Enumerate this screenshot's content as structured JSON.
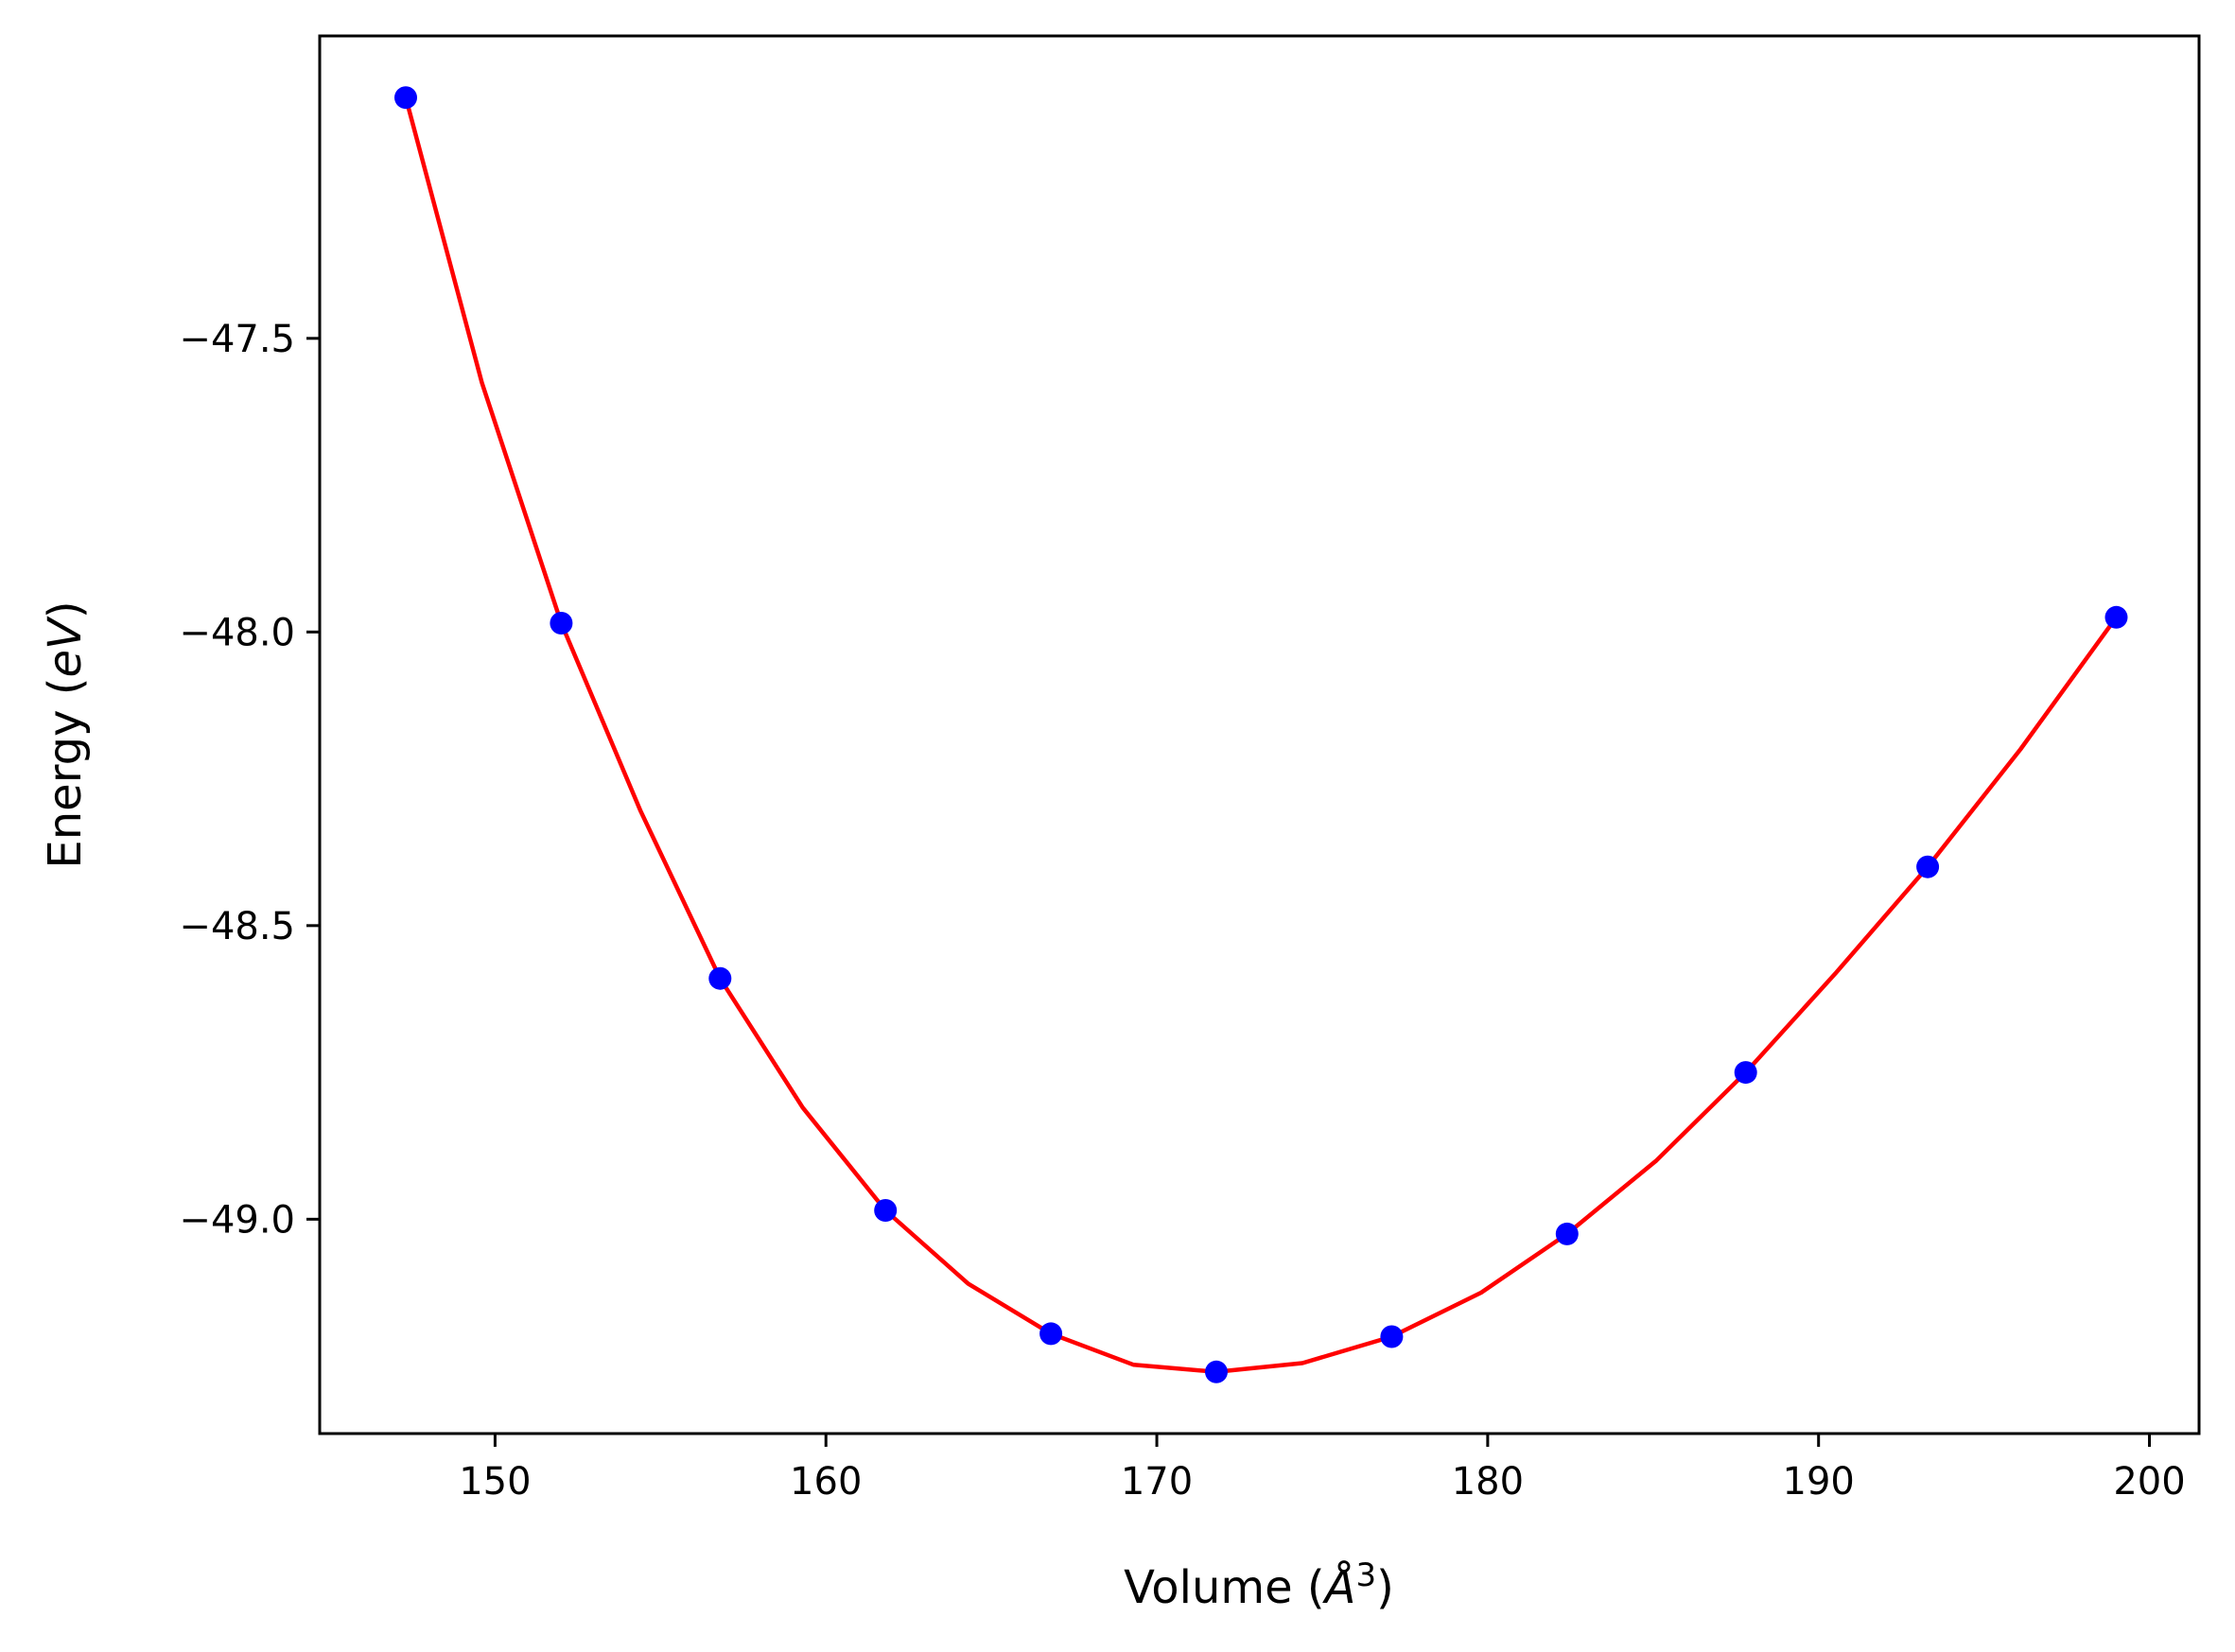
{
  "chart_data": {
    "type": "scatter",
    "xlabel_parts": {
      "prefix": "Volume (",
      "unit": "Å",
      "power": "3",
      "suffix": ")"
    },
    "ylabel_parts": {
      "prefix": "Energy (",
      "unit": "eV",
      "suffix": ")"
    },
    "xlim": [
      144.7,
      201.5
    ],
    "ylim": [
      -49.365,
      -46.985
    ],
    "xticks": [
      150,
      160,
      170,
      180,
      190,
      200
    ],
    "xtick_labels": [
      "150",
      "160",
      "170",
      "180",
      "190",
      "200"
    ],
    "yticks": [
      -47.5,
      -48.0,
      -48.5,
      -49.0
    ],
    "ytick_labels": [
      "−47.5",
      "−48.0",
      "−48.5",
      "−49.0"
    ],
    "grid": false,
    "series": [
      {
        "kind": "points",
        "color": "#0000ff",
        "x": [
          147.3,
          152.0,
          156.8,
          161.8,
          166.8,
          171.8,
          177.1,
          182.4,
          187.8,
          193.3,
          199.0
        ],
        "y": [
          -47.09,
          -47.985,
          -48.59,
          -48.985,
          -49.195,
          -49.26,
          -49.2,
          -49.025,
          -48.75,
          -48.4,
          -47.975
        ]
      },
      {
        "kind": "fit",
        "color": "#ff0000",
        "x": [
          147.3,
          149.6,
          152.0,
          154.4,
          156.8,
          159.3,
          161.8,
          164.3,
          166.8,
          169.3,
          171.8,
          174.4,
          177.1,
          179.8,
          182.4,
          185.1,
          187.8,
          190.5,
          193.3,
          196.1,
          199.0
        ],
        "y": [
          -47.09,
          -47.575,
          -47.985,
          -48.305,
          -48.59,
          -48.81,
          -48.985,
          -49.11,
          -49.195,
          -49.248,
          -49.26,
          -49.245,
          -49.2,
          -49.125,
          -49.025,
          -48.9,
          -48.75,
          -48.582,
          -48.4,
          -48.2,
          -47.975
        ]
      }
    ]
  }
}
